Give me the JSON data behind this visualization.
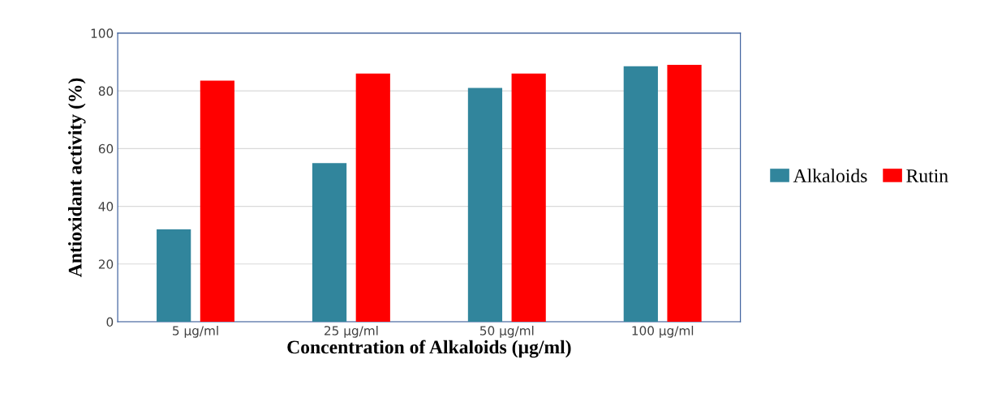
{
  "chart_data": {
    "type": "bar",
    "xlabel": "Concentration of Alkaloids (µg/ml)",
    "ylabel": "Antioxidant activity (%)",
    "categories": [
      "5 µg/ml",
      "25 µg/ml",
      "50 µg/ml",
      "100 µg/ml"
    ],
    "series": [
      {
        "name": "Alkaloids",
        "color": "#31859c",
        "values": [
          32,
          55,
          81,
          88.5
        ]
      },
      {
        "name": "Rutin",
        "color": "#ff0000",
        "values": [
          83.5,
          86,
          86,
          89
        ]
      }
    ],
    "ylim": [
      0,
      100
    ],
    "yticks": [
      0,
      20,
      40,
      60,
      80,
      100
    ],
    "grid": "y",
    "legend": "right"
  }
}
